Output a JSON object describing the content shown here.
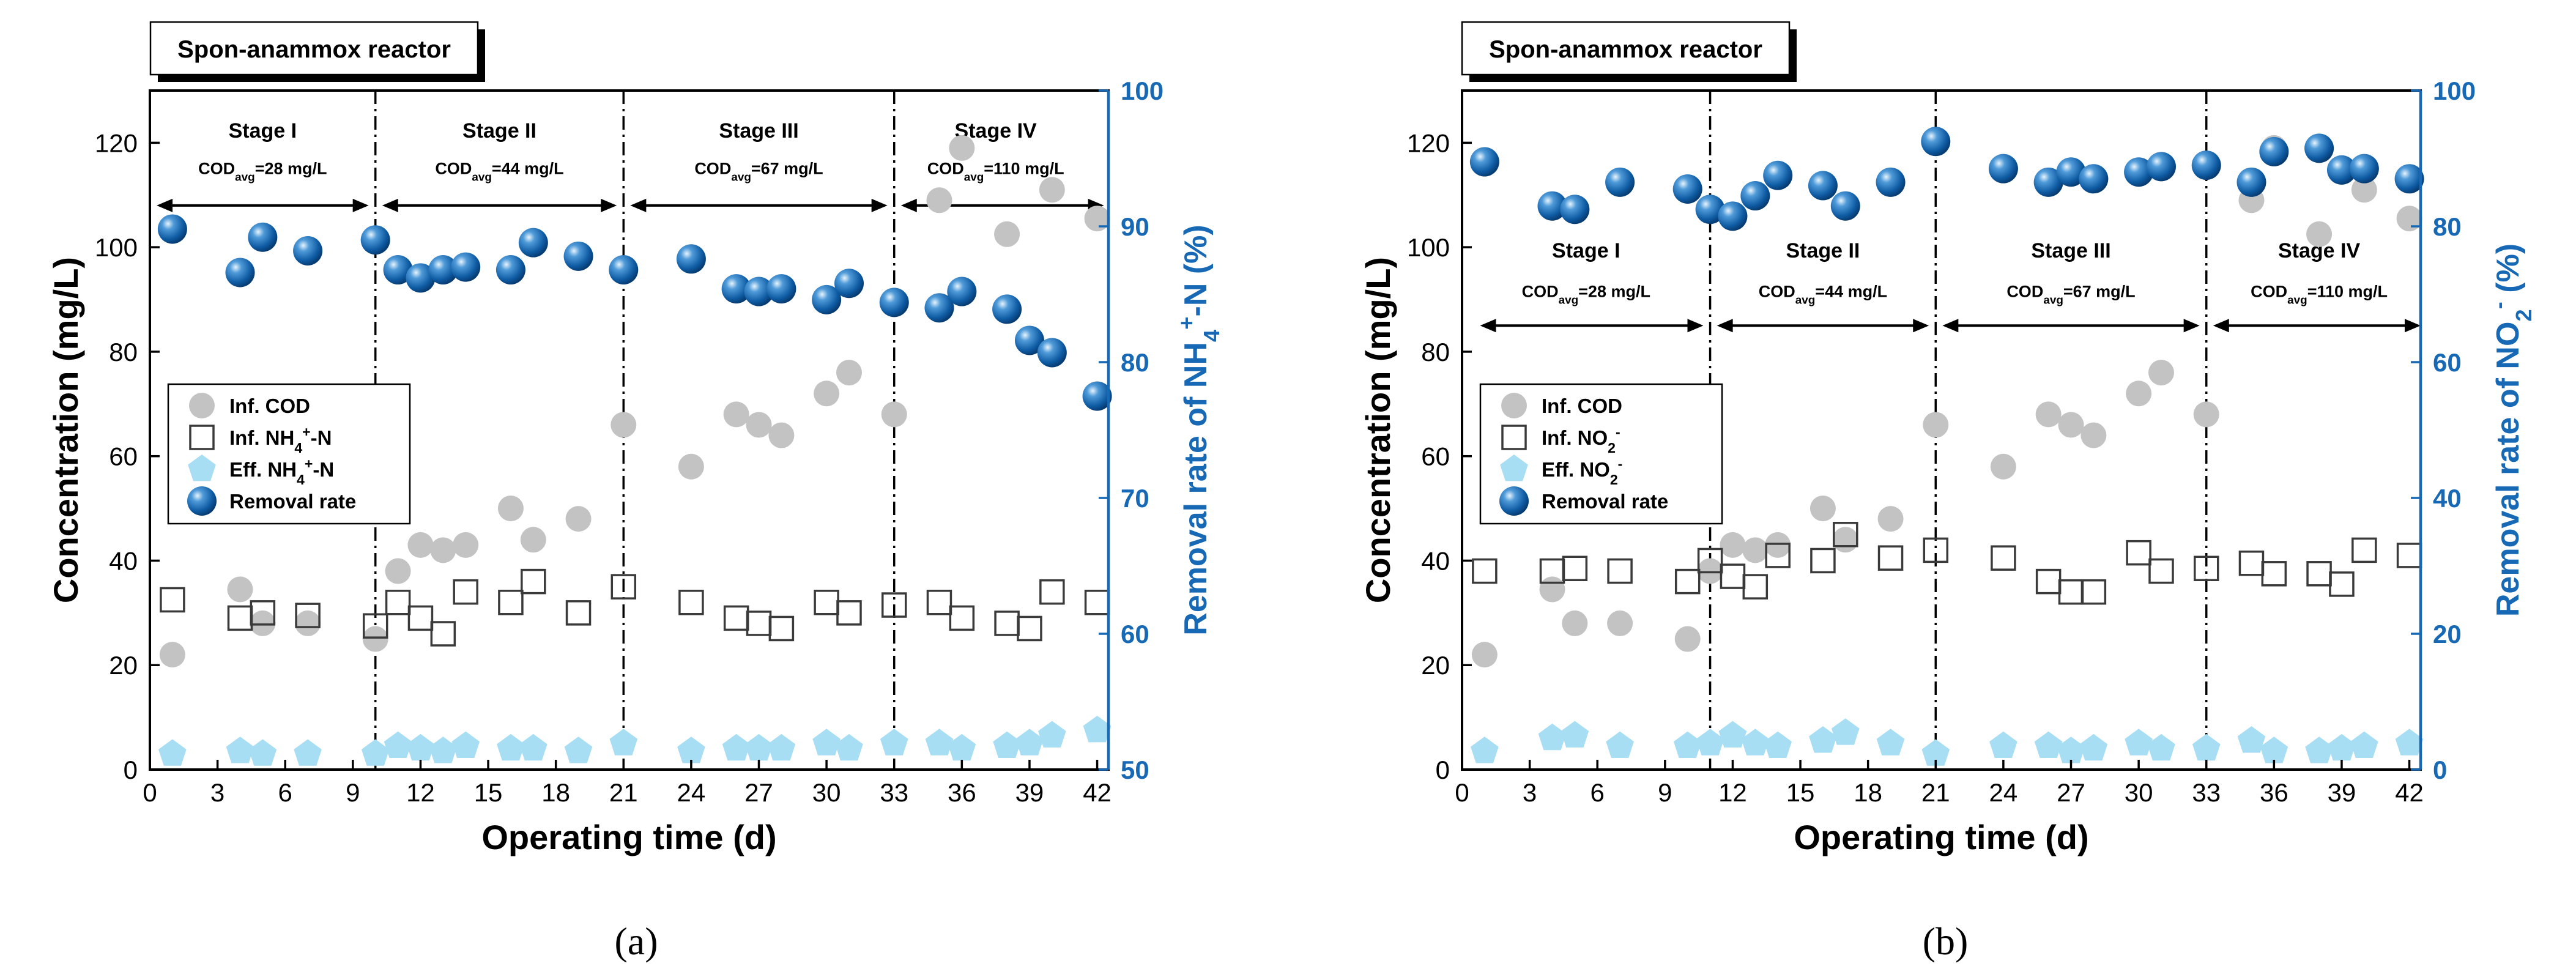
{
  "captions": [
    "(a)",
    "(b)"
  ],
  "chart_data": [
    {
      "type": "scatter",
      "panel_label": "(a)",
      "title": "Spon-anammox reactor",
      "xlabel": "Operating time (d)",
      "ylabel": "Concentration (mg/L)",
      "y2label": {
        "pre": "Removal rate of NH",
        "sub": "4",
        "sup": "+",
        "post": "-N (%)"
      },
      "xlim": [
        0,
        42.5
      ],
      "ylim": [
        0,
        130
      ],
      "y2lim": [
        50,
        100
      ],
      "xticks": [
        0,
        3,
        6,
        9,
        12,
        15,
        18,
        21,
        24,
        27,
        30,
        33,
        36,
        39,
        42
      ],
      "yticks": [
        0,
        20,
        40,
        60,
        80,
        100,
        120
      ],
      "y2ticks": [
        50,
        60,
        70,
        80,
        90,
        100
      ],
      "stage_dividers": [
        10,
        21,
        33
      ],
      "stage_label_y": 121,
      "cod_label_y": 114,
      "arrow_y": 108,
      "stages": [
        {
          "label": "Stage I",
          "cod_pre": "COD",
          "cod_sub": "avg",
          "cod_post": "=28 mg/L",
          "center": 5,
          "x_start": 0.3,
          "x_end": 9.7
        },
        {
          "label": "Stage II",
          "cod_pre": "COD",
          "cod_sub": "avg",
          "cod_post": "=44 mg/L",
          "center": 15.5,
          "x_start": 10.3,
          "x_end": 20.7
        },
        {
          "label": "Stage III",
          "cod_pre": "COD",
          "cod_sub": "avg",
          "cod_post": "=67 mg/L",
          "center": 27,
          "x_start": 21.3,
          "x_end": 32.7
        },
        {
          "label": "Stage IV",
          "cod_pre": "COD",
          "cod_sub": "avg",
          "cod_post": "=110 mg/L",
          "center": 37.5,
          "x_start": 33.3,
          "x_end": 42.3
        }
      ],
      "legend": [
        {
          "name": "Inf. COD",
          "marker": "gray-circle"
        },
        {
          "name": "Inf. NH",
          "sub": "4",
          "sup": "+",
          "post": "-N",
          "marker": "open-square"
        },
        {
          "name": "Eff. NH",
          "sub": "4",
          "sup": "+",
          "post": "-N",
          "marker": "cyan-pentagon"
        },
        {
          "name": "Removal rate",
          "marker": "blue-sphere"
        }
      ],
      "legend_position": "middle-left",
      "series": [
        {
          "name": "Inf. COD",
          "axis": "left",
          "marker": "gray-circle",
          "x": [
            1,
            4,
            5,
            7,
            10,
            11,
            12,
            13,
            14,
            16,
            17,
            19,
            21,
            24,
            26,
            27,
            28,
            30,
            31,
            33,
            35,
            36,
            38,
            40,
            42
          ],
          "y": [
            22,
            34.5,
            28,
            28,
            25,
            38,
            43,
            42,
            43,
            50,
            44,
            48,
            66,
            58,
            68,
            66,
            64,
            72,
            76,
            68,
            109,
            119,
            102.5,
            111,
            105.5
          ]
        },
        {
          "name": "Inf. NH4+-N",
          "axis": "left",
          "marker": "open-square",
          "x": [
            1,
            4,
            5,
            7,
            10,
            11,
            12,
            13,
            14,
            16,
            17,
            19,
            21,
            24,
            26,
            27,
            28,
            30,
            31,
            33,
            35,
            36,
            38,
            39,
            40,
            42
          ],
          "y": [
            32.5,
            29,
            30,
            29.5,
            27.5,
            32,
            29,
            26,
            34,
            32,
            36,
            30,
            35,
            32,
            29,
            28,
            27,
            32,
            30,
            31.5,
            32,
            29,
            28,
            27,
            34,
            32
          ]
        },
        {
          "name": "Eff. NH4+-N",
          "axis": "left",
          "marker": "cyan-pentagon",
          "x": [
            1,
            4,
            5,
            7,
            10,
            11,
            12,
            13,
            14,
            16,
            17,
            19,
            21,
            24,
            26,
            27,
            28,
            30,
            31,
            33,
            35,
            36,
            38,
            39,
            40,
            42
          ],
          "y": [
            3,
            3.5,
            3,
            3,
            3,
            4.5,
            4,
            3.5,
            4.5,
            4,
            4,
            3.5,
            5,
            3.5,
            4,
            4,
            4,
            5,
            4,
            5,
            5,
            4,
            4.5,
            5,
            6.5,
            7.5
          ]
        },
        {
          "name": "Removal rate",
          "axis": "right",
          "marker": "blue-sphere",
          "x": [
            1,
            4,
            5,
            7,
            10,
            11,
            12,
            13,
            14,
            16,
            17,
            19,
            21,
            24,
            26,
            27,
            28,
            30,
            31,
            33,
            35,
            36,
            38,
            39,
            40,
            42
          ],
          "y": [
            89.8,
            86.6,
            89.2,
            88.2,
            89.0,
            86.8,
            86.2,
            86.8,
            87.0,
            86.8,
            88.8,
            87.8,
            86.8,
            87.6,
            85.4,
            85.2,
            85.4,
            84.6,
            85.8,
            84.4,
            84.0,
            85.2,
            83.9,
            81.6,
            80.7,
            77.5
          ]
        }
      ]
    },
    {
      "type": "scatter",
      "panel_label": "(b)",
      "title": "Spon-anammox reactor",
      "xlabel": "Operating time (d)",
      "ylabel": "Concentration (mg/L)",
      "y2label": {
        "pre": "Removal rate of NO",
        "sub": "2",
        "sup": "-",
        "post": " (%)"
      },
      "xlim": [
        0,
        42.5
      ],
      "ylim": [
        0,
        130
      ],
      "y2lim": [
        0,
        100
      ],
      "xticks": [
        0,
        3,
        6,
        9,
        12,
        15,
        18,
        21,
        24,
        27,
        30,
        33,
        36,
        39,
        42
      ],
      "yticks": [
        0,
        20,
        40,
        60,
        80,
        100,
        120
      ],
      "y2ticks": [
        0,
        20,
        40,
        60,
        80,
        100
      ],
      "stage_dividers": [
        11,
        21,
        33
      ],
      "stage_label_y": 98,
      "cod_label_y": 90.5,
      "arrow_y": 85,
      "stages": [
        {
          "label": "Stage I",
          "cod_pre": "COD",
          "cod_sub": "avg",
          "cod_post": "=28 mg/L",
          "center": 5.5,
          "x_start": 0.8,
          "x_end": 10.7
        },
        {
          "label": "Stage II",
          "cod_pre": "COD",
          "cod_sub": "avg",
          "cod_post": "=44 mg/L",
          "center": 16,
          "x_start": 11.3,
          "x_end": 20.7
        },
        {
          "label": "Stage III",
          "cod_pre": "COD",
          "cod_sub": "avg",
          "cod_post": "=67 mg/L",
          "center": 27,
          "x_start": 21.3,
          "x_end": 32.7
        },
        {
          "label": "Stage IV",
          "cod_pre": "COD",
          "cod_sub": "avg",
          "cod_post": "=110 mg/L",
          "center": 38,
          "x_start": 33.3,
          "x_end": 42.5
        }
      ],
      "legend": [
        {
          "name": "Inf. COD",
          "marker": "gray-circle"
        },
        {
          "name": "Inf. NO",
          "sub": "2",
          "sup": "-",
          "post": "",
          "marker": "open-square"
        },
        {
          "name": "Eff. NO",
          "sub": "2",
          "sup": "-",
          "post": "",
          "marker": "cyan-pentagon"
        },
        {
          "name": "Removal rate",
          "marker": "blue-sphere"
        }
      ],
      "legend_position": "middle-left",
      "series": [
        {
          "name": "Inf. COD",
          "axis": "left",
          "marker": "gray-circle",
          "x": [
            1,
            4,
            5,
            7,
            10,
            11,
            12,
            13,
            14,
            16,
            17,
            19,
            21,
            24,
            26,
            27,
            28,
            30,
            31,
            33,
            35,
            36,
            38,
            40,
            42
          ],
          "y": [
            22,
            34.5,
            28,
            28,
            25,
            38,
            43,
            42,
            43,
            50,
            44,
            48,
            66,
            58,
            68,
            66,
            64,
            72,
            76,
            68,
            109,
            119,
            102.5,
            111,
            105.5
          ]
        },
        {
          "name": "Inf. NO2-",
          "axis": "left",
          "marker": "open-square",
          "x": [
            1,
            4,
            5,
            7,
            10,
            11,
            12,
            13,
            14,
            16,
            17,
            19,
            21,
            24,
            26,
            27,
            28,
            30,
            31,
            33,
            35,
            36,
            38,
            39,
            40,
            42
          ],
          "y": [
            38,
            38,
            38.5,
            38,
            36,
            40,
            37,
            35,
            41,
            40,
            45,
            40.5,
            42,
            40.5,
            36,
            34,
            34,
            41.5,
            38,
            38.5,
            39.5,
            37.5,
            37.5,
            35.5,
            42,
            41
          ]
        },
        {
          "name": "Eff. NO2-",
          "axis": "left",
          "marker": "cyan-pentagon",
          "x": [
            1,
            4,
            5,
            7,
            10,
            11,
            12,
            13,
            14,
            16,
            17,
            19,
            21,
            24,
            26,
            27,
            28,
            30,
            31,
            33,
            35,
            36,
            38,
            39,
            40,
            42
          ],
          "y": [
            3.5,
            6,
            6.5,
            4.5,
            4.5,
            5,
            6.5,
            5,
            4.5,
            5.5,
            7,
            5,
            3,
            4.5,
            4.5,
            3.5,
            4,
            5,
            4,
            4,
            5.5,
            3.5,
            3.5,
            4,
            4.5,
            5
          ]
        },
        {
          "name": "Removal rate",
          "axis": "right",
          "marker": "blue-sphere",
          "x": [
            1,
            4,
            5,
            7,
            10,
            11,
            12,
            13,
            14,
            16,
            17,
            19,
            21,
            24,
            26,
            27,
            28,
            30,
            31,
            33,
            35,
            36,
            38,
            39,
            40,
            42
          ],
          "y": [
            89.5,
            83,
            82.5,
            86.5,
            85.5,
            82.5,
            81.5,
            84.5,
            87.5,
            86,
            83,
            86.5,
            92.5,
            88.5,
            86.5,
            88,
            87,
            88,
            88.8,
            89,
            86.5,
            91,
            91.5,
            88.3,
            88.5,
            87
          ]
        }
      ]
    }
  ]
}
